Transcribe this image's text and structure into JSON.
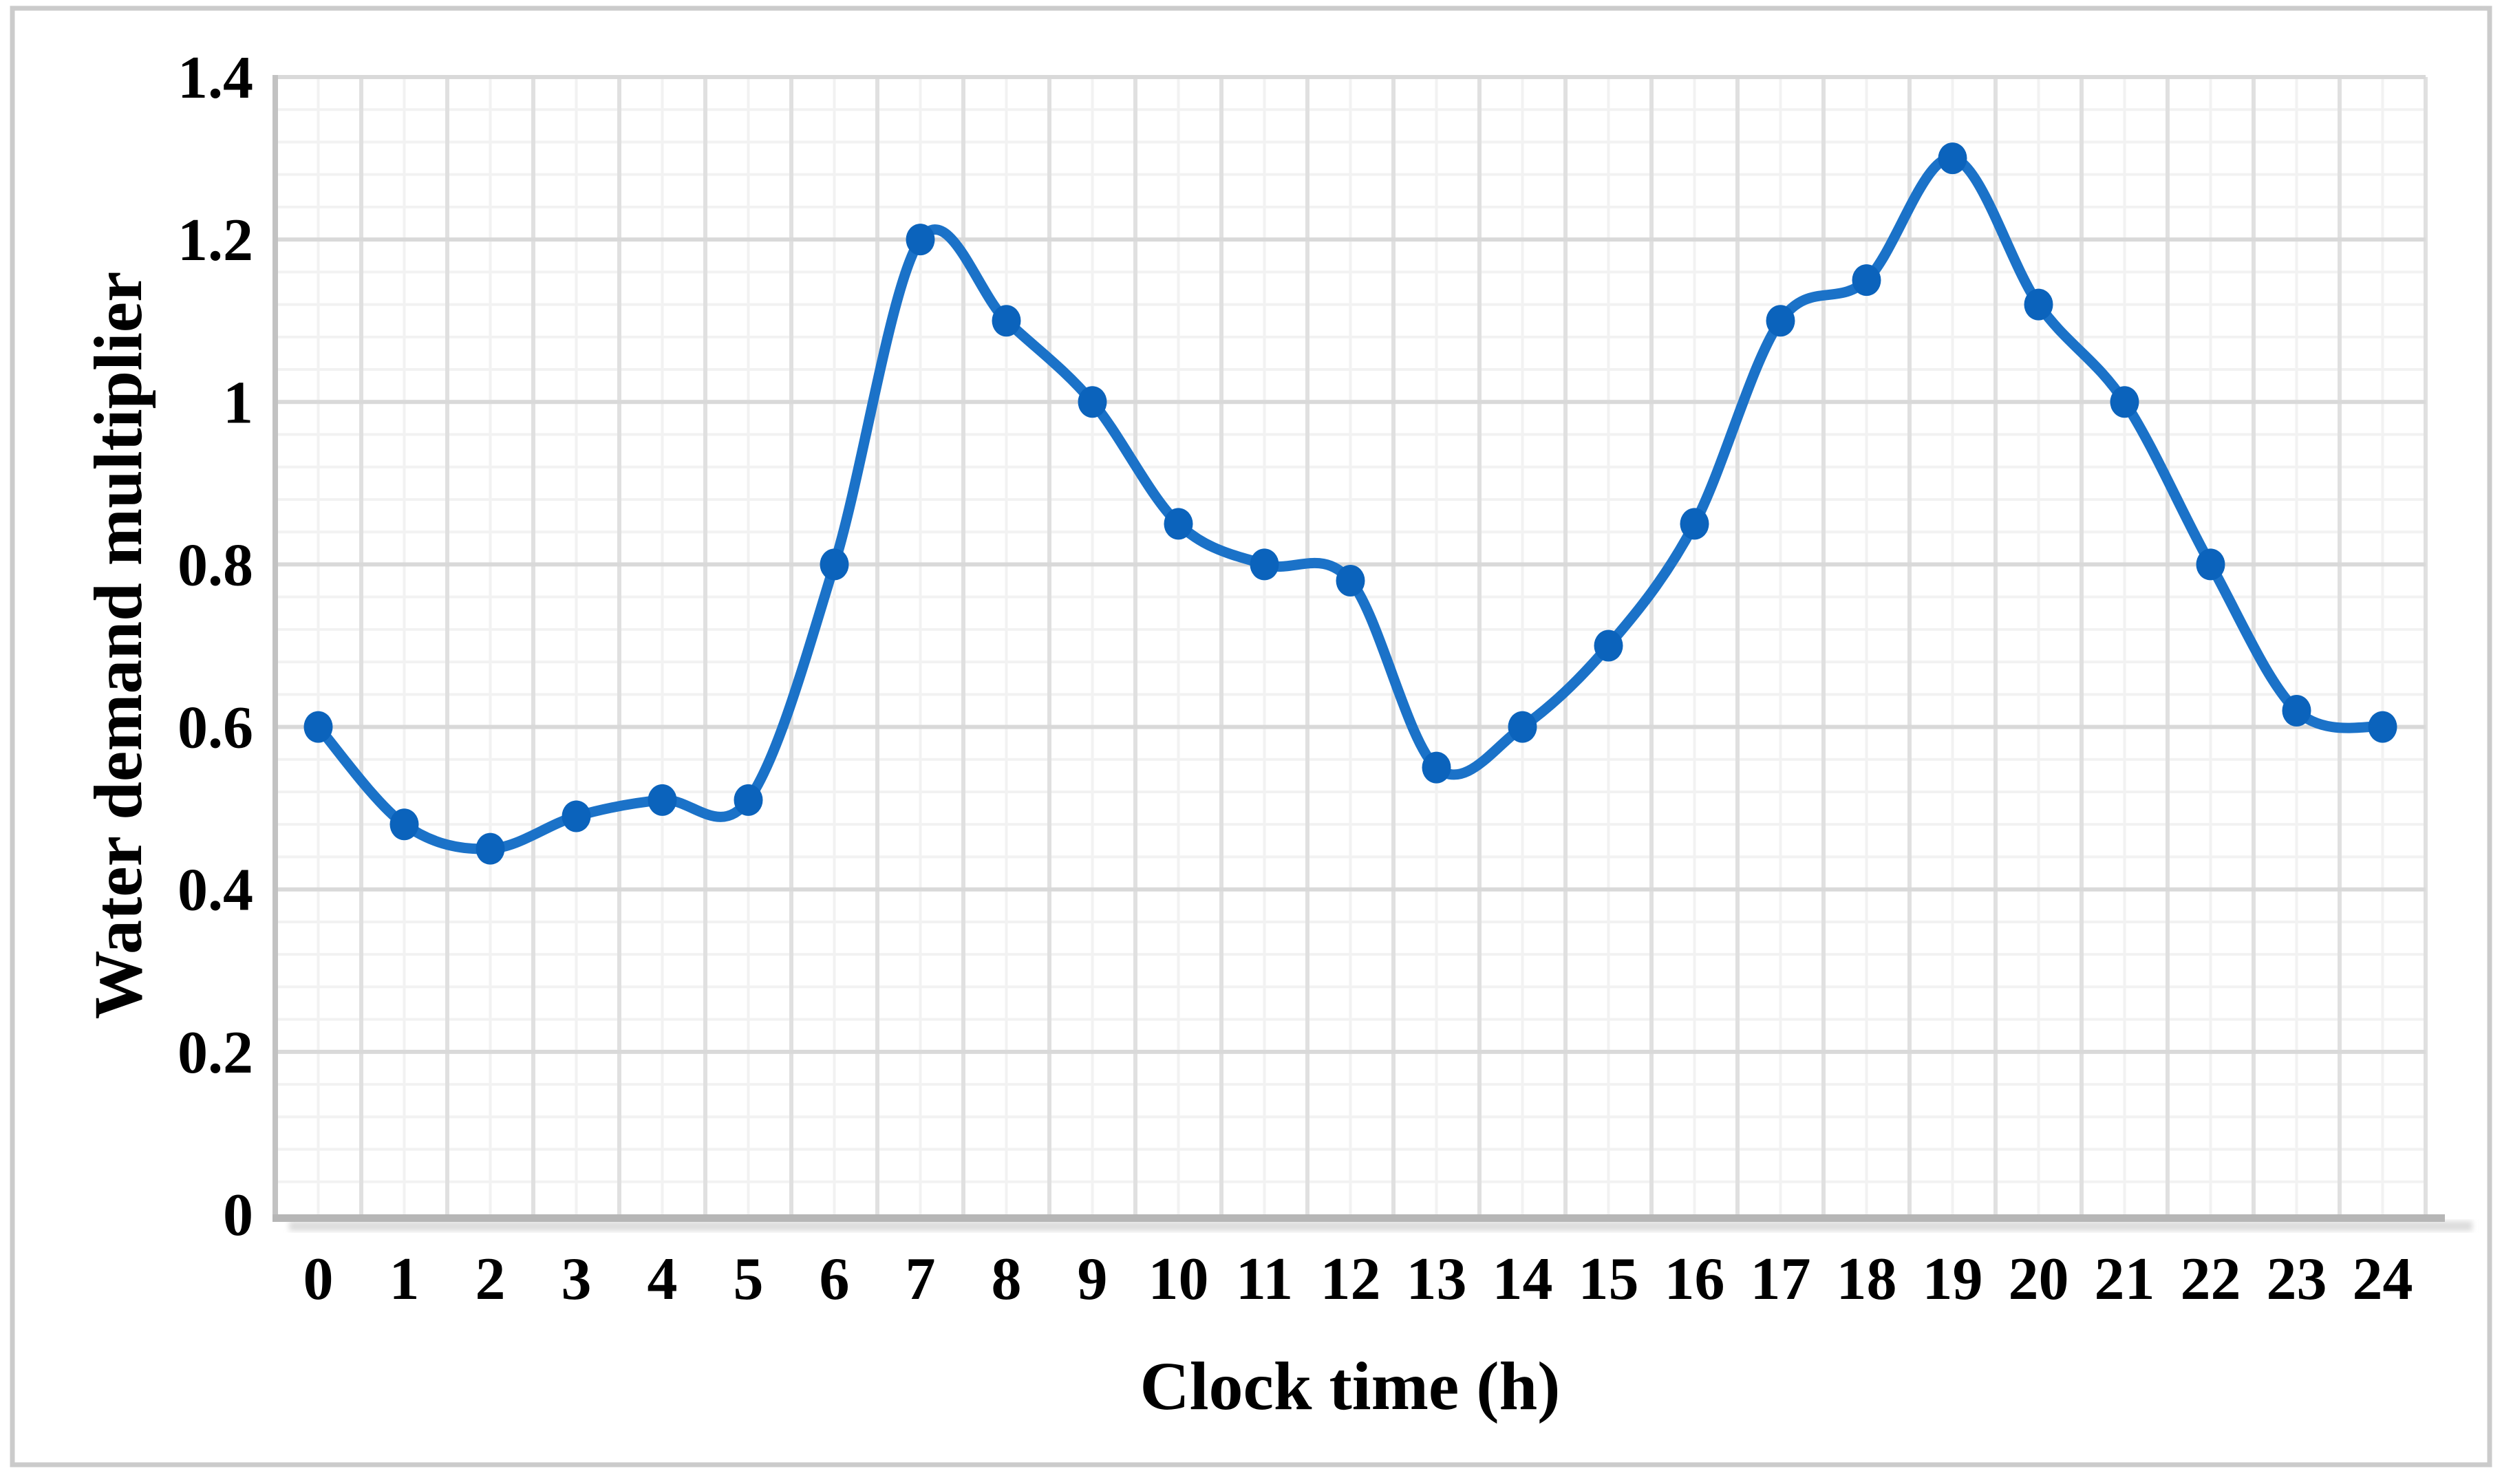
{
  "figure": {
    "background": "#FFFFFF",
    "border_color": "#CBCBCB"
  },
  "chart_data": {
    "type": "line",
    "style": "smooth-with-markers",
    "title": "",
    "xlabel": "Clock time (h)",
    "ylabel": "Water demand multiplier",
    "x": [
      "0",
      "1",
      "2",
      "3",
      "4",
      "5",
      "6",
      "7",
      "8",
      "9",
      "10",
      "11",
      "12",
      "13",
      "14",
      "15",
      "16",
      "17",
      "18",
      "19",
      "20",
      "21",
      "22",
      "23",
      "24"
    ],
    "values": [
      0.6,
      0.48,
      0.45,
      0.49,
      0.51,
      0.51,
      0.8,
      1.2,
      1.1,
      1.0,
      0.85,
      0.8,
      0.78,
      0.55,
      0.6,
      0.7,
      0.85,
      1.1,
      1.15,
      1.3,
      1.12,
      1.0,
      0.8,
      0.62,
      0.6
    ],
    "ylim": [
      0,
      1.4
    ],
    "y_major_unit": 0.2,
    "y_minor_unit": 0.04,
    "x_major_unit": 1,
    "x_minor_unit": 0.5,
    "yticks": [
      "0",
      "0.2",
      "0.4",
      "0.6",
      "0.8",
      "1",
      "1.2",
      "1.4"
    ],
    "grid": "major-and-minor",
    "legend": "none",
    "colors": {
      "line": "#1B72C8",
      "marker": "#0B63BC",
      "grid_minor": "#F2F2F2",
      "grid_major_h": "#D9D9D9",
      "grid_major_v": "#E0E0E0",
      "axis_left": "#C2C2C2",
      "axis_bottom": "#B6B6B6",
      "axis_shadow": "#DBDBDB",
      "text": "#000000"
    }
  }
}
